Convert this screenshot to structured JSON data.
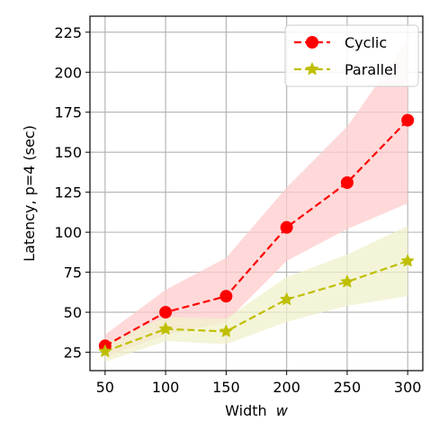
{
  "chart_data": {
    "type": "line",
    "xlabel": "Width",
    "xlabel_var": "w",
    "ylabel": "Latency, p=4 (sec)",
    "x": [
      50,
      100,
      150,
      200,
      250,
      300
    ],
    "xlim": [
      37.5,
      312.5
    ],
    "ylim": [
      13.5,
      235
    ],
    "xticks": [
      50,
      100,
      150,
      200,
      250,
      300
    ],
    "yticks": [
      25,
      50,
      75,
      100,
      125,
      150,
      175,
      200,
      225
    ],
    "grid": true,
    "legend_position": "top-right",
    "series": [
      {
        "name": "Cyclic",
        "color": "#ff0000",
        "marker": "circle",
        "linestyle": "dashed",
        "values": [
          29,
          50,
          60,
          103,
          131,
          170
        ],
        "band_lower": [
          22,
          36,
          44,
          82,
          102,
          118
        ],
        "band_upper": [
          36,
          64,
          84,
          128,
          166,
          220
        ],
        "band_color": "#ffcccc"
      },
      {
        "name": "Parallel",
        "color": "#bfbf00",
        "marker": "star",
        "linestyle": "dashed",
        "values": [
          25.5,
          39.5,
          38,
          58,
          69,
          82
        ],
        "band_lower": [
          19,
          32,
          30,
          44,
          54,
          60
        ],
        "band_upper": [
          31,
          47,
          46,
          72,
          86,
          104
        ],
        "band_color": "#f0f0cc"
      }
    ]
  }
}
